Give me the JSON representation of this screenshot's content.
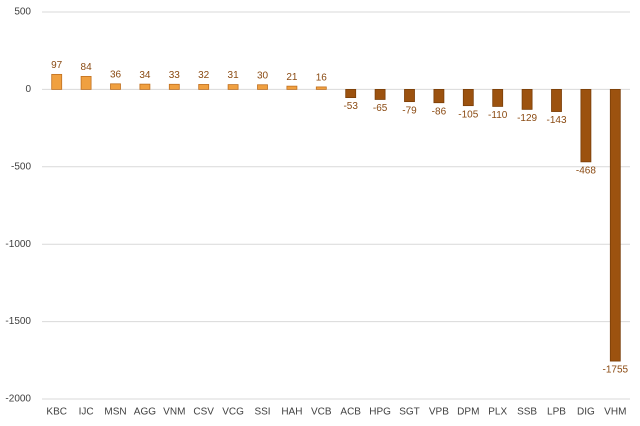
{
  "chart_data": {
    "type": "bar",
    "categories": [
      "KBC",
      "IJC",
      "MSN",
      "AGG",
      "VNM",
      "CSV",
      "VCG",
      "SSI",
      "HAH",
      "VCB",
      "ACB",
      "HPG",
      "SGT",
      "VPB",
      "DPM",
      "PLX",
      "SSB",
      "LPB",
      "DIG",
      "VHM"
    ],
    "values": [
      97,
      84,
      36,
      34,
      33,
      32,
      31,
      30,
      21,
      16,
      -53,
      -65,
      -79,
      -86,
      -105,
      -110,
      -129,
      -143,
      -468,
      -1755
    ],
    "color": "#f0a040",
    "negative_color": "#9c520f",
    "ylim": [
      -2000,
      500
    ],
    "yticks": [
      -2000,
      -1500,
      -1000,
      -500,
      0,
      500
    ],
    "grid": true
  }
}
